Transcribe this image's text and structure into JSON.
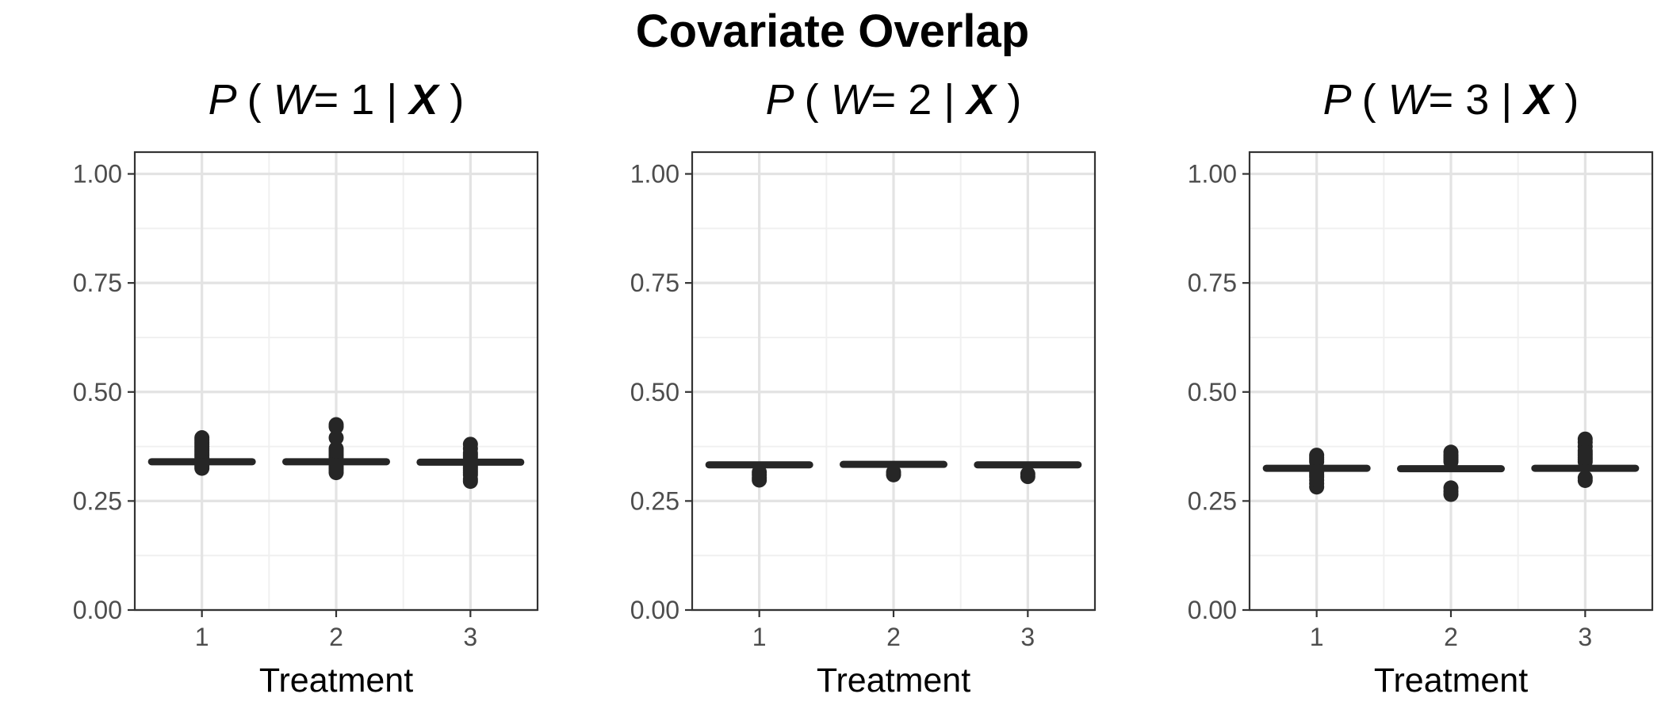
{
  "title": "Covariate Overlap",
  "chart_data": [
    {
      "type": "boxplot",
      "title": {
        "p": "P",
        "open": "(",
        "w": "W",
        "eq": "=",
        "k": "1",
        "bar": "|",
        "x": "X",
        "close": ")"
      },
      "xlabel": "Treatment",
      "ylabel": "",
      "categories": [
        "1",
        "2",
        "3"
      ],
      "ylim": [
        0,
        1.05
      ],
      "yticks": [
        0,
        0.25,
        0.5,
        0.75,
        1
      ],
      "yticklabels": [
        "0.00",
        "0.25",
        "0.50",
        "0.75",
        "1.00"
      ],
      "boxes": [
        {
          "category": "1",
          "median": 0.34,
          "q1": 0.338,
          "q3": 0.342,
          "outliers": [
            0.325,
            0.33,
            0.335,
            0.35,
            0.355,
            0.36,
            0.365,
            0.37,
            0.375,
            0.38,
            0.385,
            0.39,
            0.395
          ]
        },
        {
          "category": "2",
          "median": 0.34,
          "q1": 0.338,
          "q3": 0.342,
          "outliers": [
            0.315,
            0.32,
            0.325,
            0.33,
            0.35,
            0.355,
            0.36,
            0.365,
            0.37,
            0.395,
            0.42,
            0.425
          ]
        },
        {
          "category": "3",
          "median": 0.339,
          "q1": 0.337,
          "q3": 0.341,
          "outliers": [
            0.295,
            0.3,
            0.31,
            0.315,
            0.32,
            0.325,
            0.33,
            0.35,
            0.355,
            0.36,
            0.37,
            0.38
          ]
        }
      ],
      "grid": true
    },
    {
      "type": "boxplot",
      "title": {
        "p": "P",
        "open": "(",
        "w": "W",
        "eq": "=",
        "k": "2",
        "bar": "|",
        "x": "X",
        "close": ")"
      },
      "xlabel": "Treatment",
      "ylabel": "",
      "categories": [
        "1",
        "2",
        "3"
      ],
      "ylim": [
        0,
        1.05
      ],
      "yticks": [
        0,
        0.25,
        0.5,
        0.75,
        1
      ],
      "yticklabels": [
        "0.00",
        "0.25",
        "0.50",
        "0.75",
        "1.00"
      ],
      "boxes": [
        {
          "category": "1",
          "median": 0.333,
          "q1": 0.331,
          "q3": 0.335,
          "outliers": [
            0.298,
            0.303,
            0.31,
            0.316
          ]
        },
        {
          "category": "2",
          "median": 0.334,
          "q1": 0.332,
          "q3": 0.336,
          "outliers": [
            0.31,
            0.316
          ]
        },
        {
          "category": "3",
          "median": 0.333,
          "q1": 0.331,
          "q3": 0.335,
          "outliers": [
            0.306,
            0.312
          ]
        }
      ],
      "grid": true
    },
    {
      "type": "boxplot",
      "title": {
        "p": "P",
        "open": "(",
        "w": "W",
        "eq": "=",
        "k": "3",
        "bar": "|",
        "x": "X",
        "close": ")"
      },
      "xlabel": "Treatment",
      "ylabel": "",
      "categories": [
        "1",
        "2",
        "3"
      ],
      "ylim": [
        0,
        1.05
      ],
      "yticks": [
        0,
        0.25,
        0.5,
        0.75,
        1
      ],
      "yticklabels": [
        "0.00",
        "0.25",
        "0.50",
        "0.75",
        "1.00"
      ],
      "boxes": [
        {
          "category": "1",
          "median": 0.325,
          "q1": 0.323,
          "q3": 0.327,
          "outliers": [
            0.282,
            0.29,
            0.298,
            0.305,
            0.31,
            0.315,
            0.34,
            0.345,
            0.35,
            0.355
          ]
        },
        {
          "category": "2",
          "median": 0.324,
          "q1": 0.322,
          "q3": 0.326,
          "outliers": [
            0.265,
            0.272,
            0.28,
            0.34,
            0.345,
            0.35,
            0.355,
            0.362
          ]
        },
        {
          "category": "3",
          "median": 0.325,
          "q1": 0.323,
          "q3": 0.327,
          "outliers": [
            0.297,
            0.303,
            0.34,
            0.345,
            0.35,
            0.355,
            0.36,
            0.365,
            0.375,
            0.385,
            0.392
          ]
        }
      ],
      "grid": true
    }
  ]
}
